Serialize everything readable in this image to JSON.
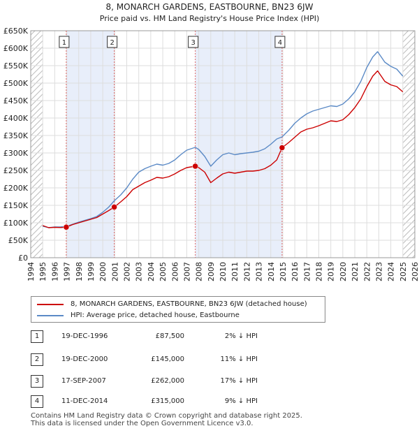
{
  "chart_data": {
    "type": "line",
    "title": "8, MONARCH GARDENS, EASTBOURNE, BN23 6JW",
    "subtitle": "Price paid vs. HM Land Registry's House Price Index (HPI)",
    "xlim": [
      1994,
      2026
    ],
    "ylim": [
      0,
      650000
    ],
    "x_ticks": [
      1994,
      1995,
      1996,
      1997,
      1998,
      1999,
      2000,
      2001,
      2002,
      2003,
      2004,
      2005,
      2006,
      2007,
      2008,
      2009,
      2010,
      2011,
      2012,
      2013,
      2014,
      2015,
      2016,
      2017,
      2018,
      2019,
      2020,
      2021,
      2022,
      2023,
      2024,
      2025,
      2026
    ],
    "y_ticks": [
      {
        "value": 0,
        "label": "£0"
      },
      {
        "value": 50000,
        "label": "£50K"
      },
      {
        "value": 100000,
        "label": "£100K"
      },
      {
        "value": 150000,
        "label": "£150K"
      },
      {
        "value": 200000,
        "label": "£200K"
      },
      {
        "value": 250000,
        "label": "£250K"
      },
      {
        "value": 300000,
        "label": "£300K"
      },
      {
        "value": 350000,
        "label": "£350K"
      },
      {
        "value": 400000,
        "label": "£400K"
      },
      {
        "value": 450000,
        "label": "£450K"
      },
      {
        "value": 500000,
        "label": "£500K"
      },
      {
        "value": 550000,
        "label": "£550K"
      },
      {
        "value": 600000,
        "label": "£600K"
      },
      {
        "value": 650000,
        "label": "£650K"
      }
    ],
    "grid": true,
    "hatched_regions": [
      [
        1994,
        1995
      ],
      [
        2025.0,
        2026
      ]
    ],
    "shaded_periods": [
      [
        1996.96,
        2000.96
      ],
      [
        2007.71,
        2014.94
      ]
    ],
    "series": [
      {
        "name": "8, MONARCH GARDENS, EASTBOURNE, BN23 6JW (detached house)",
        "color": "#cc0000",
        "points": [
          [
            1995.0,
            92000
          ],
          [
            1995.5,
            86000
          ],
          [
            1996.0,
            87000
          ],
          [
            1996.5,
            86500
          ],
          [
            1996.96,
            87500
          ],
          [
            1997.5,
            95000
          ],
          [
            1998.0,
            100000
          ],
          [
            1998.5,
            105000
          ],
          [
            1999.0,
            110000
          ],
          [
            1999.5,
            115000
          ],
          [
            2000.0,
            125000
          ],
          [
            2000.5,
            135000
          ],
          [
            2000.96,
            145000
          ],
          [
            2001.5,
            160000
          ],
          [
            2002.0,
            175000
          ],
          [
            2002.5,
            195000
          ],
          [
            2003.0,
            205000
          ],
          [
            2003.5,
            215000
          ],
          [
            2004.0,
            222000
          ],
          [
            2004.5,
            230000
          ],
          [
            2005.0,
            228000
          ],
          [
            2005.5,
            232000
          ],
          [
            2006.0,
            240000
          ],
          [
            2006.5,
            250000
          ],
          [
            2007.0,
            258000
          ],
          [
            2007.71,
            262000
          ],
          [
            2008.0,
            258000
          ],
          [
            2008.5,
            245000
          ],
          [
            2009.0,
            215000
          ],
          [
            2009.5,
            228000
          ],
          [
            2010.0,
            240000
          ],
          [
            2010.5,
            245000
          ],
          [
            2011.0,
            242000
          ],
          [
            2011.5,
            245000
          ],
          [
            2012.0,
            248000
          ],
          [
            2012.5,
            248000
          ],
          [
            2013.0,
            250000
          ],
          [
            2013.5,
            255000
          ],
          [
            2014.0,
            265000
          ],
          [
            2014.5,
            280000
          ],
          [
            2014.94,
            315000
          ],
          [
            2015.5,
            330000
          ],
          [
            2016.0,
            345000
          ],
          [
            2016.5,
            360000
          ],
          [
            2017.0,
            368000
          ],
          [
            2017.5,
            372000
          ],
          [
            2018.0,
            378000
          ],
          [
            2018.5,
            385000
          ],
          [
            2019.0,
            392000
          ],
          [
            2019.5,
            390000
          ],
          [
            2020.0,
            395000
          ],
          [
            2020.5,
            410000
          ],
          [
            2021.0,
            430000
          ],
          [
            2021.5,
            455000
          ],
          [
            2022.0,
            490000
          ],
          [
            2022.5,
            520000
          ],
          [
            2022.9,
            535000
          ],
          [
            2023.2,
            520000
          ],
          [
            2023.5,
            505000
          ],
          [
            2024.0,
            495000
          ],
          [
            2024.5,
            490000
          ],
          [
            2025.0,
            475000
          ]
        ]
      },
      {
        "name": "HPI: Average price, detached house, Eastbourne",
        "color": "#5b8ac6",
        "points": [
          [
            1995.0,
            90000
          ],
          [
            1995.5,
            86000
          ],
          [
            1996.0,
            88000
          ],
          [
            1996.5,
            88500
          ],
          [
            1996.96,
            89500
          ],
          [
            1997.5,
            96000
          ],
          [
            1998.0,
            102000
          ],
          [
            1998.5,
            107000
          ],
          [
            1999.0,
            112000
          ],
          [
            1999.5,
            118000
          ],
          [
            2000.0,
            130000
          ],
          [
            2000.5,
            145000
          ],
          [
            2000.96,
            163000
          ],
          [
            2001.5,
            180000
          ],
          [
            2002.0,
            200000
          ],
          [
            2002.5,
            225000
          ],
          [
            2003.0,
            245000
          ],
          [
            2003.5,
            255000
          ],
          [
            2004.0,
            262000
          ],
          [
            2004.5,
            268000
          ],
          [
            2005.0,
            265000
          ],
          [
            2005.5,
            270000
          ],
          [
            2006.0,
            280000
          ],
          [
            2006.5,
            295000
          ],
          [
            2007.0,
            308000
          ],
          [
            2007.71,
            316000
          ],
          [
            2008.0,
            310000
          ],
          [
            2008.5,
            290000
          ],
          [
            2009.0,
            262000
          ],
          [
            2009.5,
            280000
          ],
          [
            2010.0,
            295000
          ],
          [
            2010.5,
            300000
          ],
          [
            2011.0,
            295000
          ],
          [
            2011.5,
            298000
          ],
          [
            2012.0,
            300000
          ],
          [
            2012.5,
            302000
          ],
          [
            2013.0,
            305000
          ],
          [
            2013.5,
            312000
          ],
          [
            2014.0,
            325000
          ],
          [
            2014.5,
            340000
          ],
          [
            2014.94,
            346000
          ],
          [
            2015.5,
            365000
          ],
          [
            2016.0,
            385000
          ],
          [
            2016.5,
            400000
          ],
          [
            2017.0,
            412000
          ],
          [
            2017.5,
            420000
          ],
          [
            2018.0,
            425000
          ],
          [
            2018.5,
            430000
          ],
          [
            2019.0,
            435000
          ],
          [
            2019.5,
            433000
          ],
          [
            2020.0,
            440000
          ],
          [
            2020.5,
            455000
          ],
          [
            2021.0,
            475000
          ],
          [
            2021.5,
            505000
          ],
          [
            2022.0,
            545000
          ],
          [
            2022.5,
            575000
          ],
          [
            2022.9,
            590000
          ],
          [
            2023.2,
            575000
          ],
          [
            2023.5,
            560000
          ],
          [
            2024.0,
            548000
          ],
          [
            2024.5,
            540000
          ],
          [
            2025.0,
            520000
          ]
        ]
      }
    ],
    "annotations": [
      {
        "label": "1",
        "x": 1996.96,
        "y": 87500
      },
      {
        "label": "2",
        "x": 2000.96,
        "y": 145000
      },
      {
        "label": "3",
        "x": 2007.71,
        "y": 262000
      },
      {
        "label": "4",
        "x": 2014.94,
        "y": 315000
      }
    ]
  },
  "legend": [
    {
      "label": "8, MONARCH GARDENS, EASTBOURNE, BN23 6JW (detached house)",
      "color": "#cc0000"
    },
    {
      "label": "HPI: Average price, detached house, Eastbourne",
      "color": "#5b8ac6"
    }
  ],
  "transactions": [
    {
      "num": "1",
      "date": "19-DEC-1996",
      "price": "£87,500",
      "hpi": "2% ↓ HPI"
    },
    {
      "num": "2",
      "date": "19-DEC-2000",
      "price": "£145,000",
      "hpi": "11% ↓ HPI"
    },
    {
      "num": "3",
      "date": "17-SEP-2007",
      "price": "£262,000",
      "hpi": "17% ↓ HPI"
    },
    {
      "num": "4",
      "date": "11-DEC-2014",
      "price": "£315,000",
      "hpi": "9% ↓ HPI"
    }
  ],
  "footer": {
    "line1": "Contains HM Land Registry data © Crown copyright and database right 2025.",
    "line2": "This data is licensed under the Open Government Licence v3.0."
  }
}
